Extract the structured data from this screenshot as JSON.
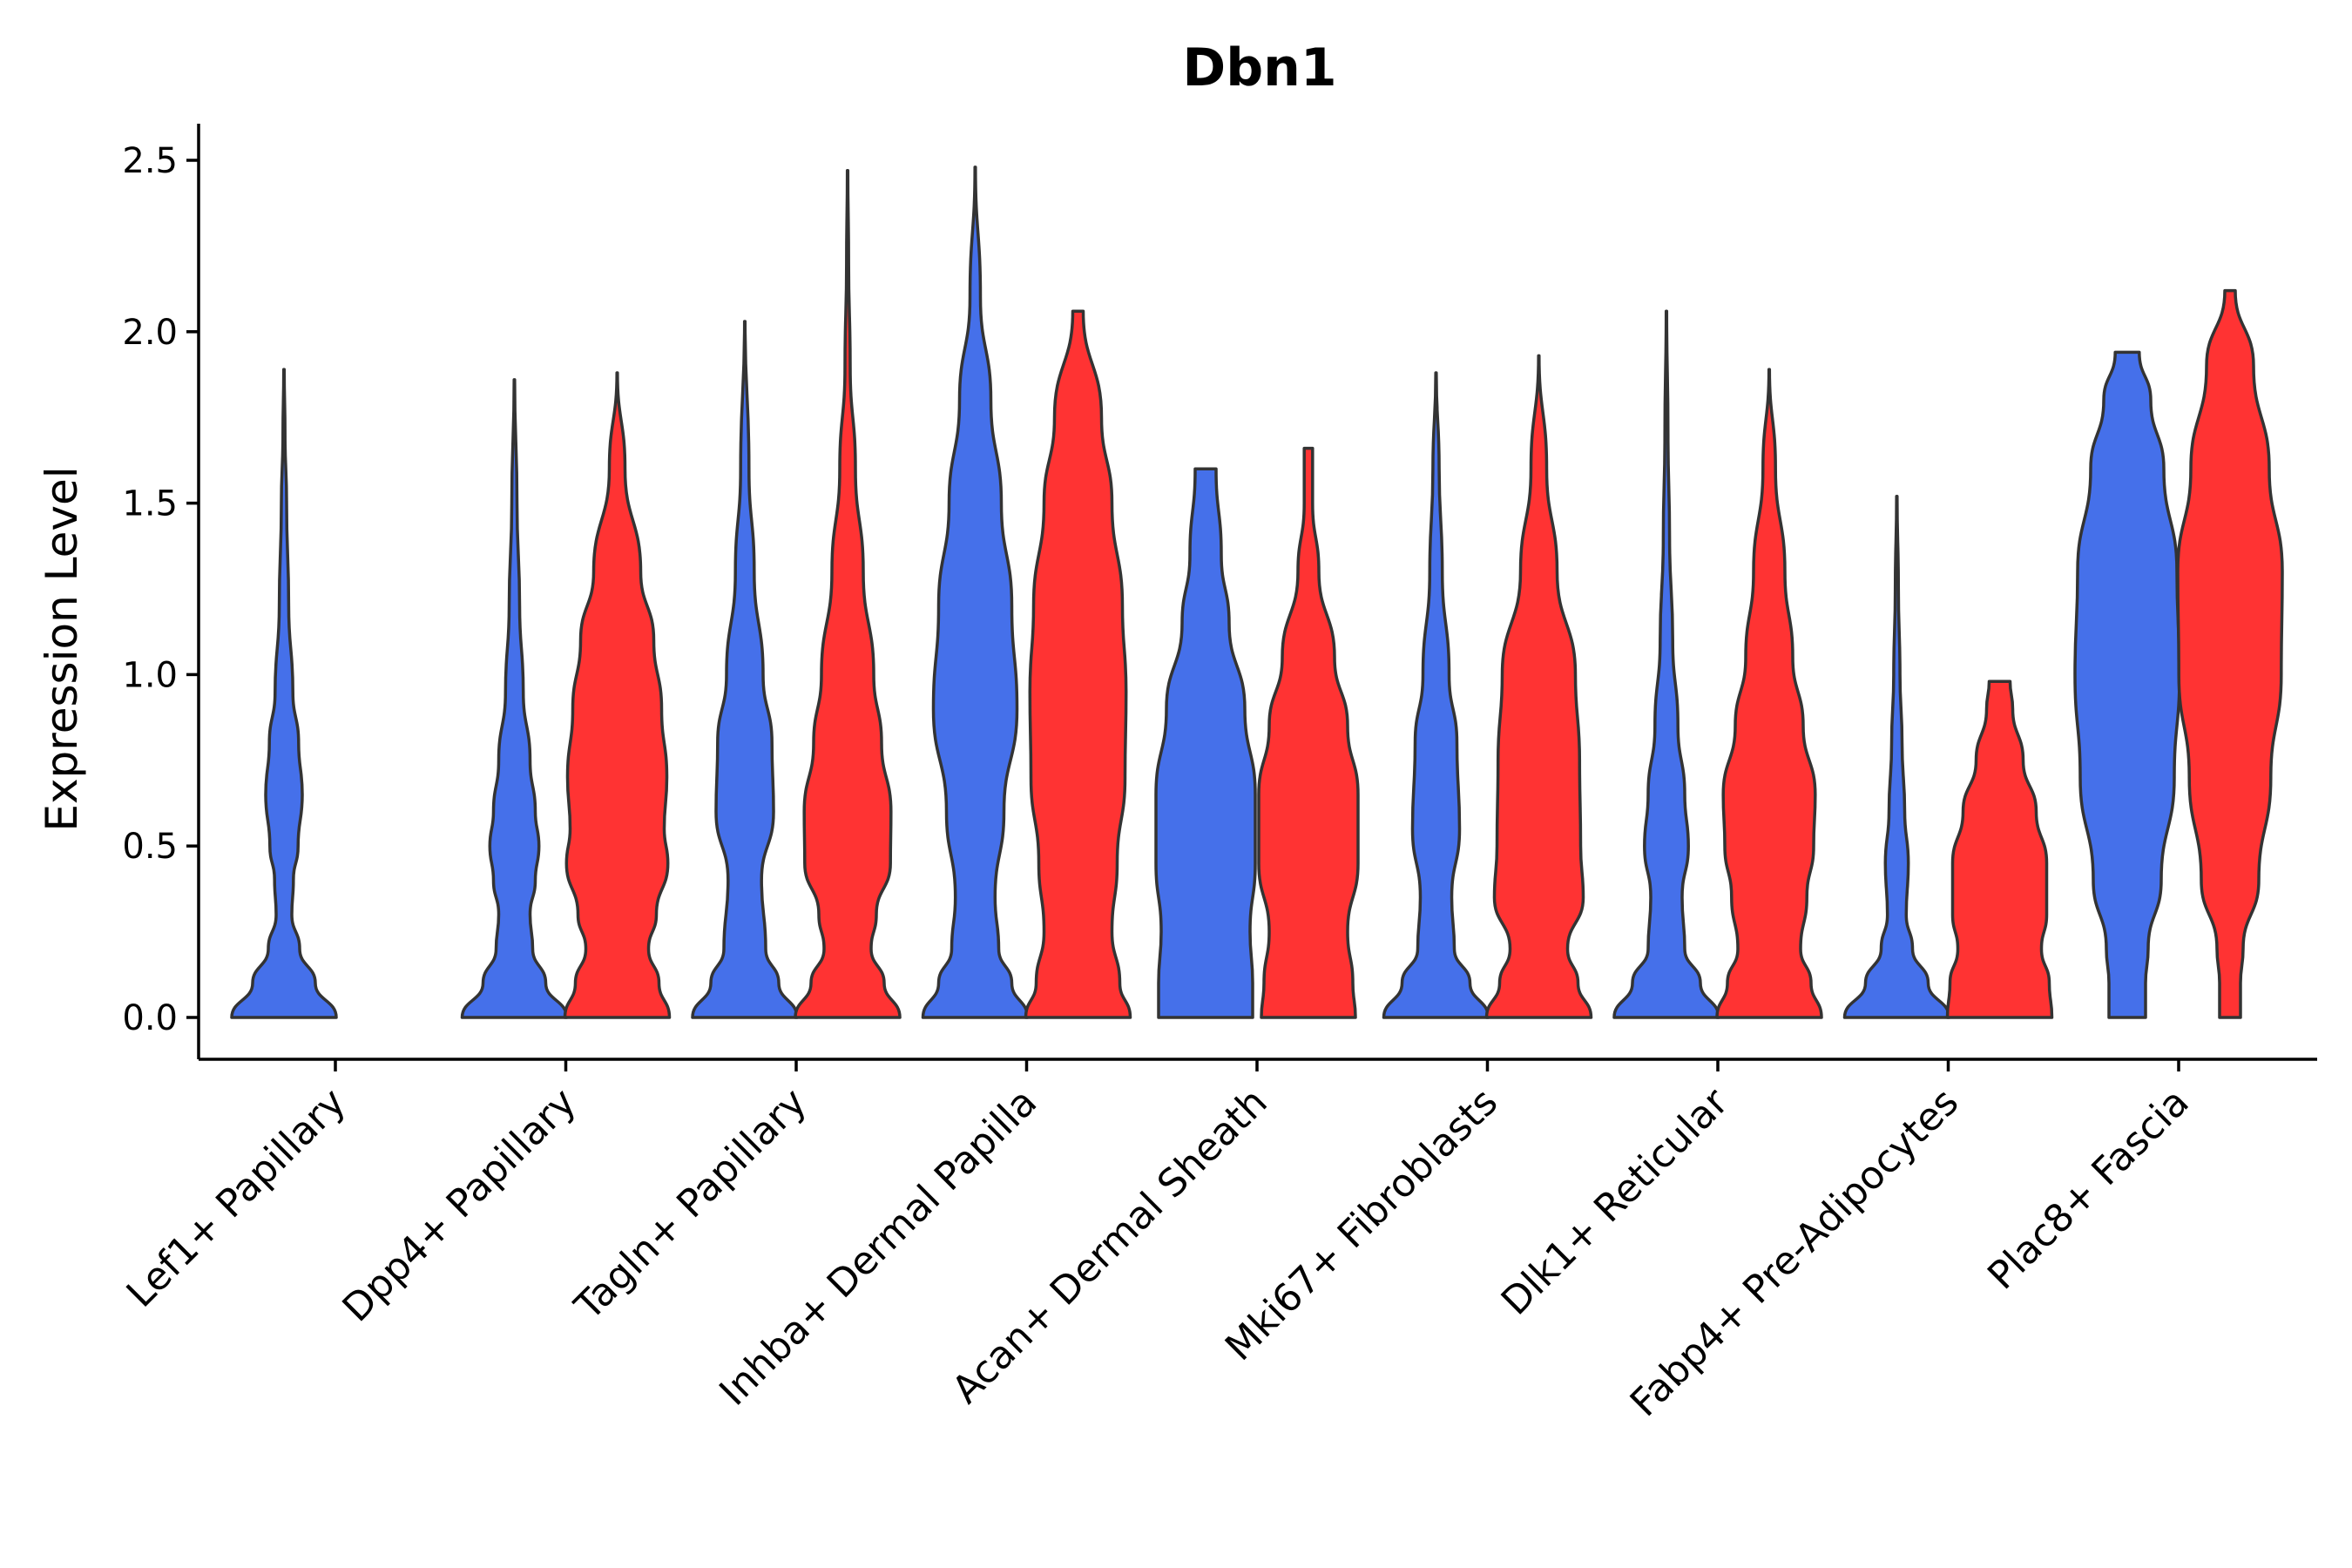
{
  "chart_data": {
    "type": "violin",
    "title": "Dbn1",
    "xlabel": "",
    "ylabel": "Expression Level",
    "ylim": [
      -0.125,
      2.6
    ],
    "yticks": [
      0.0,
      0.5,
      1.0,
      1.5,
      2.0,
      2.5
    ],
    "ytick_labels": [
      "0.0",
      "0.5",
      "1.0",
      "1.5",
      "2.0",
      "2.5"
    ],
    "colors": {
      "condition_a": "#4570EA",
      "condition_b": "#FF3333"
    },
    "categories": [
      "Lef1+ Papillary",
      "Dpp4+ Papillary",
      "Tagln+ Papillary",
      "Inhba+ Dermal Papilla",
      "Acan+ Dermal Sheath",
      "Mki67+ Fibroblasts",
      "Dlk1+ Reticular",
      "Fabp4+ Pre-Adipocytes",
      "Plac8+ Fascia"
    ],
    "violins": [
      {
        "category_index": 0,
        "group": "condition_a",
        "color": "#4570EA",
        "min": 0.0,
        "max": 1.89,
        "y": [
          0,
          0.1,
          0.2,
          0.3,
          0.4,
          0.5,
          0.65,
          0.8,
          0.95,
          1.2,
          1.5,
          1.7,
          1.89
        ],
        "w": [
          1,
          0.6,
          0.3,
          0.15,
          0.18,
          0.27,
          0.35,
          0.28,
          0.17,
          0.09,
          0.05,
          0.02,
          0.005
        ]
      },
      {
        "category_index": 1,
        "group": "condition_a",
        "color": "#4570EA",
        "min": 0.0,
        "max": 1.86,
        "y": [
          0,
          0.1,
          0.2,
          0.3,
          0.4,
          0.5,
          0.6,
          0.75,
          0.95,
          1.2,
          1.5,
          1.86
        ],
        "w": [
          1,
          0.6,
          0.35,
          0.3,
          0.4,
          0.47,
          0.4,
          0.3,
          0.17,
          0.1,
          0.05,
          0.005
        ]
      },
      {
        "category_index": 1,
        "group": "condition_b",
        "color": "#FF3333",
        "min": 0.0,
        "max": 1.88,
        "y": [
          0,
          0.1,
          0.2,
          0.3,
          0.45,
          0.55,
          0.7,
          0.9,
          1.1,
          1.3,
          1.6,
          1.88
        ],
        "w": [
          1,
          0.8,
          0.6,
          0.75,
          0.97,
          0.9,
          0.95,
          0.85,
          0.7,
          0.45,
          0.15,
          0.005
        ]
      },
      {
        "category_index": 2,
        "group": "condition_a",
        "color": "#4570EA",
        "min": 0.0,
        "max": 2.03,
        "y": [
          0,
          0.1,
          0.2,
          0.4,
          0.6,
          0.8,
          1.0,
          1.3,
          1.6,
          2.03
        ],
        "w": [
          1,
          0.65,
          0.4,
          0.32,
          0.55,
          0.52,
          0.35,
          0.18,
          0.08,
          0.005
        ]
      },
      {
        "category_index": 2,
        "group": "condition_b",
        "color": "#FF3333",
        "min": 0.0,
        "max": 2.47,
        "y": [
          0,
          0.1,
          0.2,
          0.3,
          0.45,
          0.6,
          0.8,
          1.0,
          1.3,
          1.6,
          1.9,
          2.2,
          2.47
        ],
        "w": [
          1,
          0.7,
          0.45,
          0.55,
          0.82,
          0.83,
          0.65,
          0.5,
          0.3,
          0.15,
          0.05,
          0.02,
          0.005
        ]
      },
      {
        "category_index": 3,
        "group": "condition_a",
        "color": "#4570EA",
        "min": 0.0,
        "max": 2.48,
        "y": [
          0,
          0.1,
          0.2,
          0.35,
          0.6,
          0.9,
          1.2,
          1.5,
          1.8,
          2.1,
          2.48
        ],
        "w": [
          1,
          0.7,
          0.45,
          0.38,
          0.55,
          0.8,
          0.7,
          0.5,
          0.3,
          0.1,
          0.005
        ]
      },
      {
        "category_index": 3,
        "group": "condition_b",
        "color": "#FF3333",
        "min": 0.0,
        "max": 2.06,
        "y": [
          0,
          0.1,
          0.25,
          0.45,
          0.7,
          0.95,
          1.2,
          1.5,
          1.75,
          2.06
        ],
        "w": [
          1,
          0.8,
          0.65,
          0.75,
          0.9,
          0.92,
          0.85,
          0.65,
          0.45,
          0.1
        ]
      },
      {
        "category_index": 4,
        "group": "condition_a",
        "color": "#4570EA",
        "min": 0.0,
        "max": 1.6,
        "y": [
          0,
          0.1,
          0.25,
          0.45,
          0.65,
          0.9,
          1.15,
          1.35,
          1.6
        ],
        "w": [
          0.9,
          0.9,
          0.85,
          0.95,
          0.95,
          0.75,
          0.45,
          0.3,
          0.2
        ]
      },
      {
        "category_index": 4,
        "group": "condition_b",
        "color": "#FF3333",
        "min": 0.0,
        "max": 1.66,
        "y": [
          0,
          0.1,
          0.25,
          0.45,
          0.65,
          0.85,
          1.05,
          1.3,
          1.5,
          1.66
        ],
        "w": [
          0.9,
          0.85,
          0.75,
          0.95,
          0.95,
          0.75,
          0.5,
          0.2,
          0.08,
          0.08
        ]
      },
      {
        "category_index": 5,
        "group": "condition_a",
        "color": "#4570EA",
        "min": 0.0,
        "max": 1.88,
        "y": [
          0,
          0.1,
          0.2,
          0.35,
          0.55,
          0.8,
          1.0,
          1.3,
          1.6,
          1.88
        ],
        "w": [
          1,
          0.65,
          0.35,
          0.3,
          0.45,
          0.4,
          0.25,
          0.12,
          0.06,
          0.005
        ]
      },
      {
        "category_index": 5,
        "group": "condition_b",
        "color": "#FF3333",
        "min": 0.0,
        "max": 1.93,
        "y": [
          0,
          0.1,
          0.2,
          0.35,
          0.5,
          0.75,
          1.0,
          1.3,
          1.6,
          1.93
        ],
        "w": [
          1,
          0.75,
          0.55,
          0.85,
          0.8,
          0.78,
          0.7,
          0.35,
          0.15,
          0.005
        ]
      },
      {
        "category_index": 6,
        "group": "condition_a",
        "color": "#4570EA",
        "min": 0.0,
        "max": 2.06,
        "y": [
          0,
          0.1,
          0.2,
          0.35,
          0.5,
          0.65,
          0.85,
          1.1,
          1.4,
          1.7,
          2.06
        ],
        "w": [
          1,
          0.65,
          0.35,
          0.3,
          0.42,
          0.35,
          0.22,
          0.12,
          0.06,
          0.03,
          0.005
        ]
      },
      {
        "category_index": 6,
        "group": "condition_b",
        "color": "#FF3333",
        "min": 0.0,
        "max": 1.89,
        "y": [
          0,
          0.1,
          0.2,
          0.35,
          0.5,
          0.65,
          0.85,
          1.05,
          1.3,
          1.6,
          1.89
        ],
        "w": [
          1,
          0.8,
          0.6,
          0.72,
          0.85,
          0.88,
          0.65,
          0.45,
          0.3,
          0.12,
          0.005
        ]
      },
      {
        "category_index": 7,
        "group": "condition_a",
        "color": "#4570EA",
        "min": 0.0,
        "max": 1.52,
        "y": [
          0,
          0.1,
          0.2,
          0.3,
          0.45,
          0.6,
          0.8,
          1.0,
          1.25,
          1.52
        ],
        "w": [
          1,
          0.6,
          0.3,
          0.18,
          0.22,
          0.15,
          0.1,
          0.06,
          0.03,
          0.005
        ]
      },
      {
        "category_index": 7,
        "group": "condition_b",
        "color": "#FF3333",
        "min": 0.0,
        "max": 0.98,
        "y": [
          0,
          0.1,
          0.2,
          0.3,
          0.45,
          0.6,
          0.75,
          0.9,
          0.98
        ],
        "w": [
          1,
          0.95,
          0.8,
          0.9,
          0.9,
          0.7,
          0.45,
          0.25,
          0.2
        ]
      },
      {
        "category_index": 8,
        "group": "condition_a",
        "color": "#4570EA",
        "min": 0.0,
        "max": 1.94,
        "y": [
          0,
          0.1,
          0.2,
          0.4,
          0.7,
          1.0,
          1.3,
          1.6,
          1.8,
          1.94
        ],
        "w": [
          0.35,
          0.35,
          0.4,
          0.65,
          0.9,
          1.0,
          0.95,
          0.7,
          0.45,
          0.23
        ]
      },
      {
        "category_index": 8,
        "group": "condition_b",
        "color": "#FF3333",
        "min": 0.0,
        "max": 2.12,
        "y": [
          0,
          0.1,
          0.2,
          0.4,
          0.7,
          1.0,
          1.3,
          1.6,
          1.9,
          2.12
        ],
        "w": [
          0.2,
          0.2,
          0.25,
          0.55,
          0.78,
          0.98,
          1.0,
          0.75,
          0.45,
          0.1
        ]
      }
    ]
  }
}
